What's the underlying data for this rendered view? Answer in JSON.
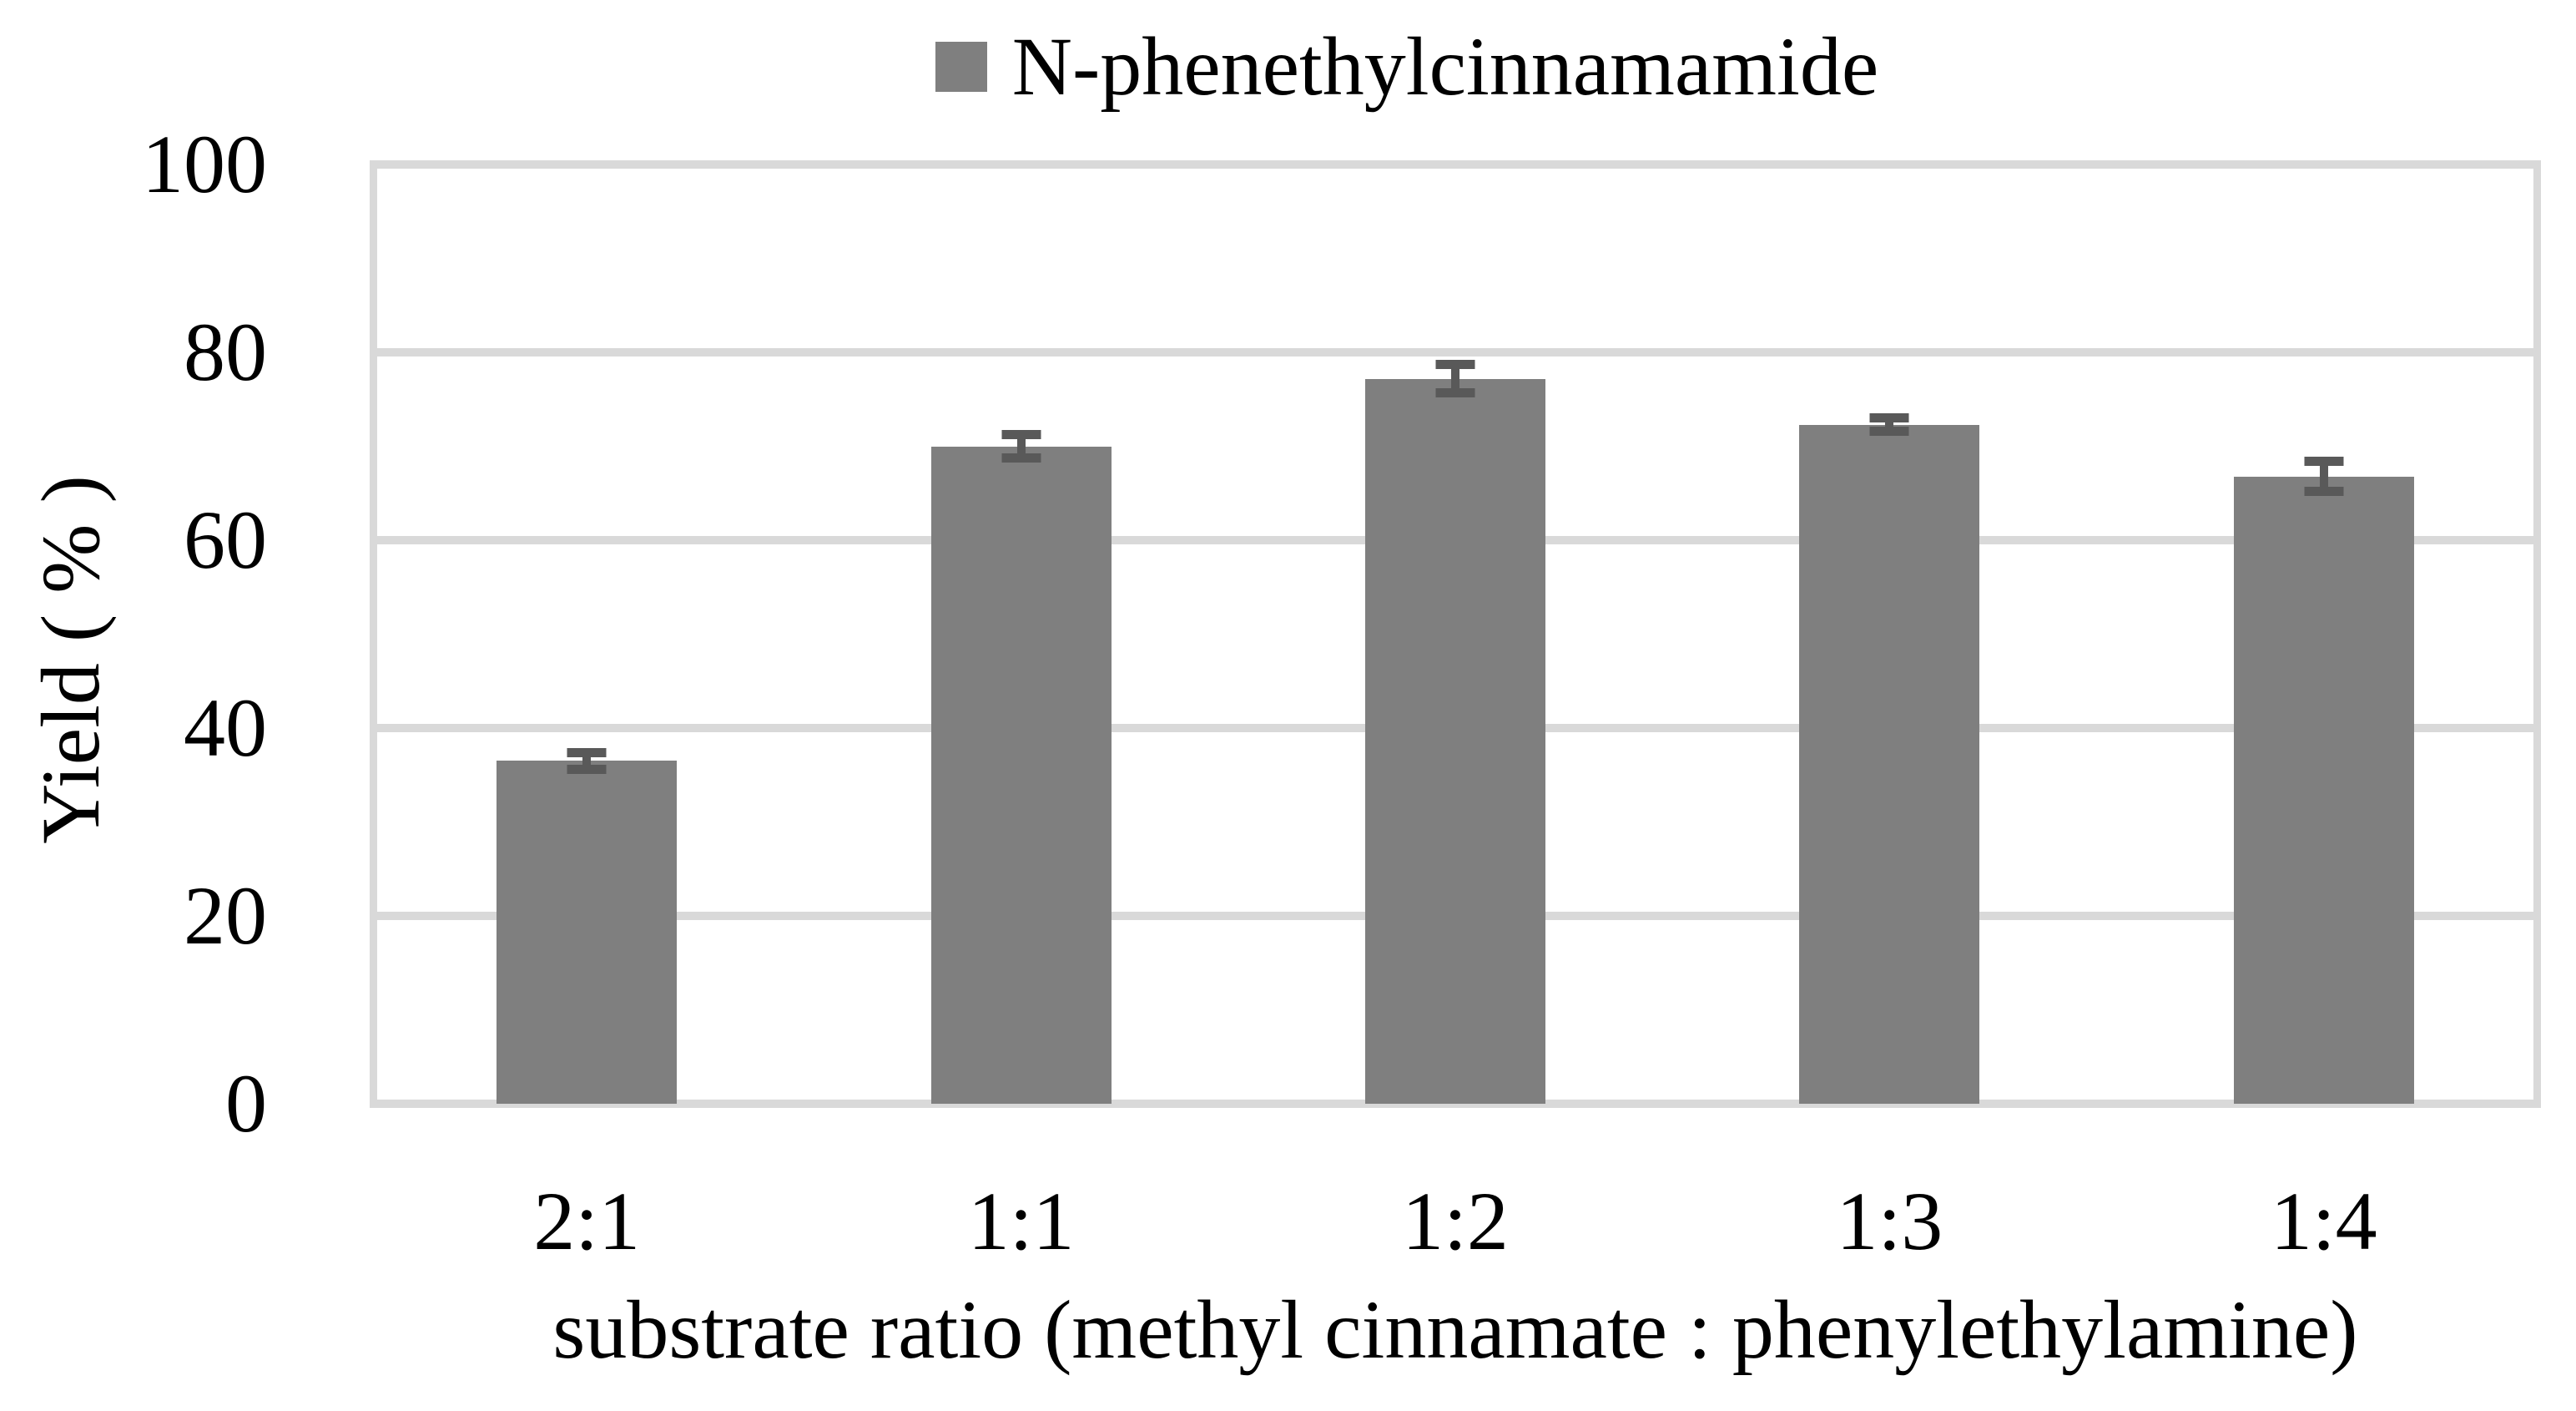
{
  "figure": {
    "background": "#FFFFFF",
    "text_color": "#000000"
  },
  "legend": {
    "label": "N-phenethylcinnamamide",
    "marker_color": "#7F7F7F",
    "position": "top"
  },
  "y_axis": {
    "title": "Yield ( % )",
    "ticks": [
      "100",
      "80",
      "60",
      "40",
      "20",
      "0"
    ]
  },
  "x_axis": {
    "title": "substrate ratio (methyl cinnamate : phenylethylamine)"
  },
  "chart_data": {
    "type": "bar",
    "title": "",
    "categories": [
      "2:1",
      "1:1",
      "1:2",
      "1:3",
      "1:4"
    ],
    "series": [
      {
        "name": "N-phenethylcinnamamide",
        "values": [
          36.5,
          70.0,
          77.2,
          72.3,
          66.8
        ],
        "error_bars": [
          1.4,
          1.7,
          2.0,
          1.2,
          2.1
        ],
        "color": "#7F7F7F"
      }
    ],
    "xlabel": "substrate ratio (methyl cinnamate : phenylethylamine)",
    "ylabel": "Yield ( % )",
    "ylim": [
      0,
      100
    ],
    "ytick_interval": 20,
    "grid": "horizontal",
    "gridline_color": "#D9D9D9",
    "error_bar_color": "#595959",
    "legend_position": "top-center",
    "bar_width_fraction": 0.415
  }
}
